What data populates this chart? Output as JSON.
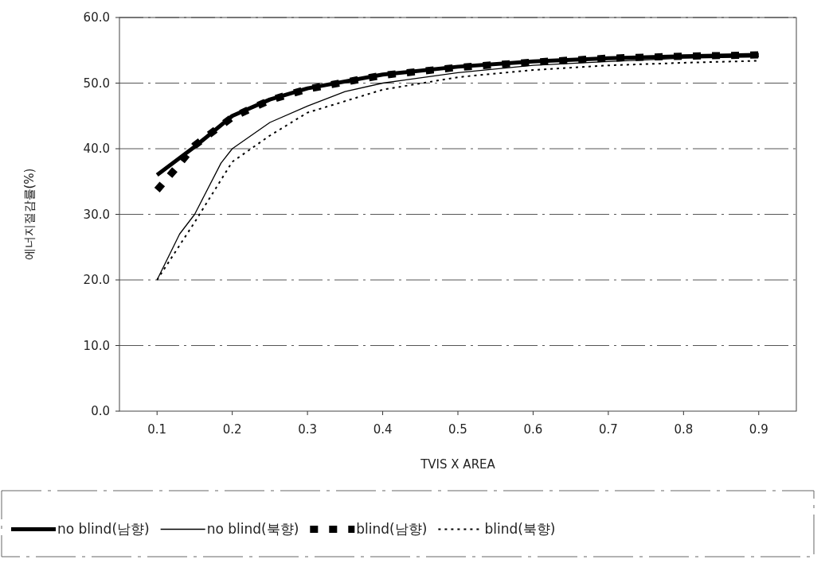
{
  "chart_data": {
    "type": "line",
    "xlabel": "TVIS X AREA",
    "ylabel": "에너지절감률(%)",
    "xlim": [
      0.05,
      0.95
    ],
    "xticks": [
      0.1,
      0.2,
      0.3,
      0.4,
      0.5,
      0.6,
      0.7,
      0.8,
      0.9
    ],
    "ylim": [
      0,
      60
    ],
    "yticks": [
      {
        "value": 0,
        "label": "0.0"
      },
      {
        "value": 10,
        "label": "10.0"
      },
      {
        "value": 20,
        "label": "20.0"
      },
      {
        "value": 30,
        "label": "30.0"
      },
      {
        "value": 40,
        "label": "40.0"
      },
      {
        "value": 50,
        "label": "50.0"
      },
      {
        "value": 60,
        "label": "60.0"
      }
    ],
    "grid": "y",
    "legend": "bottom",
    "marker": "none",
    "series": [
      {
        "name": "no blind(남향)",
        "color": "#000000",
        "line_style": "solid",
        "x": [
          0.1,
          0.15,
          0.2,
          0.25,
          0.3,
          0.4,
          0.5,
          0.6,
          0.7,
          0.8,
          0.9
        ],
        "values": [
          36,
          40.3,
          45,
          47.5,
          49.2,
          51.3,
          52.5,
          53.3,
          53.8,
          54.1,
          54.3
        ]
      },
      {
        "name": "no blind(북향)",
        "color": "#000000",
        "line_style": "solid",
        "x": [
          0.1,
          0.13,
          0.15,
          0.185,
          0.2,
          0.25,
          0.3,
          0.35,
          0.4,
          0.5,
          0.6,
          0.7,
          0.8,
          0.9
        ],
        "values": [
          20,
          27,
          30,
          37.8,
          40,
          44,
          46.5,
          48.7,
          50,
          51.6,
          52.7,
          53.3,
          53.8,
          54
        ]
      },
      {
        "name": "blind(남향)",
        "color": "#000000",
        "line_style": "dashed",
        "x": [
          0.1,
          0.125,
          0.15,
          0.2,
          0.25,
          0.3,
          0.4,
          0.5,
          0.6,
          0.7,
          0.8,
          0.9
        ],
        "values": [
          33.7,
          37,
          40.5,
          44.8,
          47.4,
          49.1,
          51.2,
          52.4,
          53.2,
          53.8,
          54.1,
          54.3
        ]
      },
      {
        "name": "blind(북향)",
        "color": "#000000",
        "line_style": "dotted",
        "x": [
          0.1,
          0.15,
          0.2,
          0.25,
          0.3,
          0.4,
          0.5,
          0.6,
          0.7,
          0.8,
          0.9
        ],
        "values": [
          20,
          28.8,
          38,
          42,
          45.5,
          49,
          50.9,
          52,
          52.7,
          53.1,
          53.4
        ]
      }
    ]
  }
}
